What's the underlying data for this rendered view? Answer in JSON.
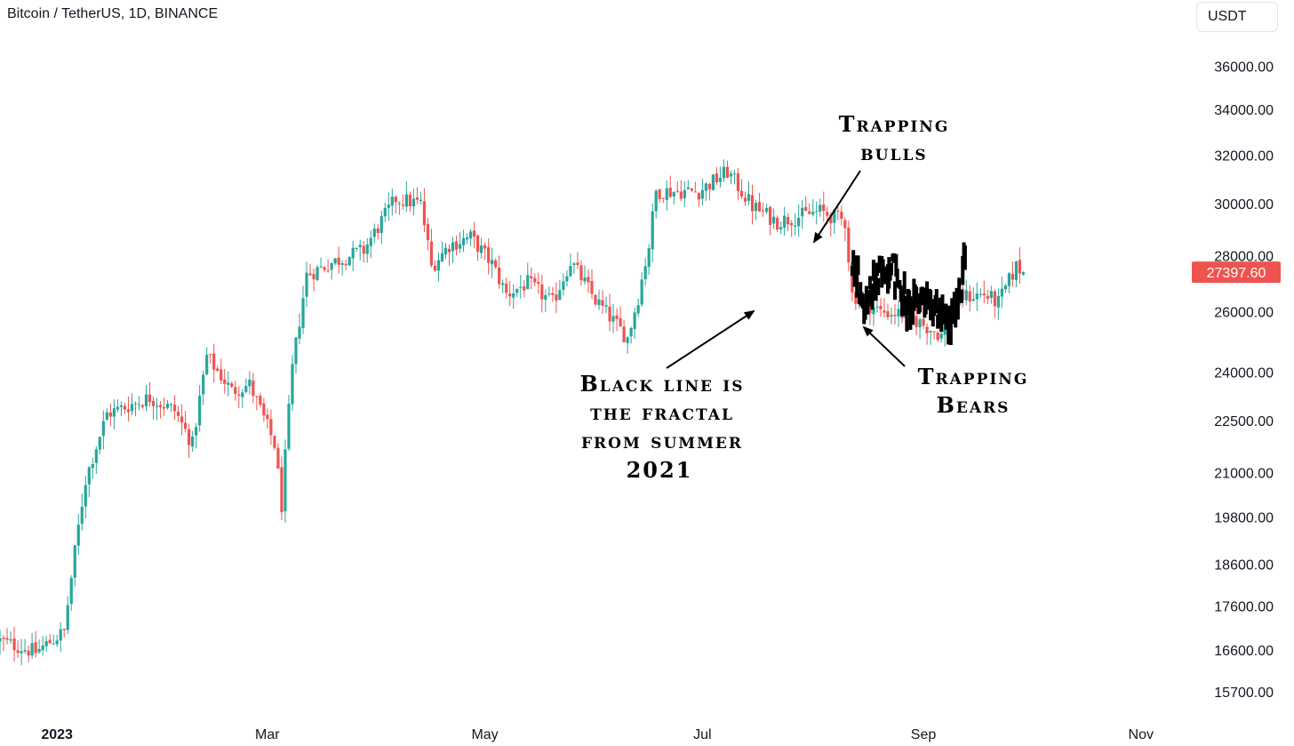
{
  "header": {
    "title": "Bitcoin / TetherUS, 1D, BINANCE",
    "currency_button": "USDT"
  },
  "colors": {
    "up": "#26a69a",
    "down": "#ef5350",
    "fractal": "#000000",
    "price_tag": "#ef5350"
  },
  "chart_data": {
    "type": "candlestick",
    "symbol": "Bitcoin / TetherUS",
    "interval": "1D",
    "exchange": "BINANCE",
    "y_scale": "log",
    "ylim": [
      15300,
      37500
    ],
    "y_ticks": [
      {
        "value": 36000,
        "label": "36000.00"
      },
      {
        "value": 34000,
        "label": "34000.00"
      },
      {
        "value": 32000,
        "label": "32000.00"
      },
      {
        "value": 30000,
        "label": "30000.00"
      },
      {
        "value": 28000,
        "label": "28000.00"
      },
      {
        "value": 26000,
        "label": "26000.00"
      },
      {
        "value": 24000,
        "label": "24000.00"
      },
      {
        "value": 22500,
        "label": "22500.00"
      },
      {
        "value": 21000,
        "label": "21000.00"
      },
      {
        "value": 19800,
        "label": "19800.00"
      },
      {
        "value": 18600,
        "label": "18600.00"
      },
      {
        "value": 17600,
        "label": "17600.00"
      },
      {
        "value": 16600,
        "label": "16600.00"
      },
      {
        "value": 15700,
        "label": "15700.00"
      }
    ],
    "x_range": [
      "2022-12-21",
      "2023-11-20"
    ],
    "x_ticks": [
      {
        "date": "2023-01-01",
        "label": "2023",
        "bold": true
      },
      {
        "date": "2023-03-01",
        "label": "Mar"
      },
      {
        "date": "2023-05-01",
        "label": "May"
      },
      {
        "date": "2023-07-01",
        "label": "Jul"
      },
      {
        "date": "2023-09-01",
        "label": "Sep"
      },
      {
        "date": "2023-11-01",
        "label": "Nov"
      }
    ],
    "last_price": {
      "value": 27397.6,
      "label": "27397.60"
    },
    "anchors": [
      [
        "2022-12-21",
        16800
      ],
      [
        "2022-12-31",
        16550
      ],
      [
        "2023-01-08",
        17000
      ],
      [
        "2023-01-14",
        20800
      ],
      [
        "2023-01-20",
        22700
      ],
      [
        "2023-02-01",
        23200
      ],
      [
        "2023-02-08",
        22800
      ],
      [
        "2023-02-13",
        21800
      ],
      [
        "2023-02-17",
        24500
      ],
      [
        "2023-02-24",
        23400
      ],
      [
        "2023-03-01",
        23600
      ],
      [
        "2023-03-08",
        21800
      ],
      [
        "2023-03-10",
        20100
      ],
      [
        "2023-03-13",
        24100
      ],
      [
        "2023-03-17",
        27300
      ],
      [
        "2023-03-25",
        27800
      ],
      [
        "2023-04-02",
        28200
      ],
      [
        "2023-04-11",
        30200
      ],
      [
        "2023-04-18",
        30000
      ],
      [
        "2023-04-21",
        27600
      ],
      [
        "2023-04-26",
        28400
      ],
      [
        "2023-05-02",
        28700
      ],
      [
        "2023-05-08",
        27700
      ],
      [
        "2023-05-12",
        26600
      ],
      [
        "2023-05-18",
        27000
      ],
      [
        "2023-05-25",
        26300
      ],
      [
        "2023-05-30",
        27800
      ],
      [
        "2023-06-06",
        26400
      ],
      [
        "2023-06-15",
        25100
      ],
      [
        "2023-06-18",
        26500
      ],
      [
        "2023-06-21",
        28400
      ],
      [
        "2023-06-23",
        30500
      ],
      [
        "2023-07-05",
        30500
      ],
      [
        "2023-07-13",
        31300
      ],
      [
        "2023-07-20",
        29900
      ],
      [
        "2023-07-27",
        29300
      ],
      [
        "2023-08-08",
        29700
      ],
      [
        "2023-08-15",
        29300
      ],
      [
        "2023-08-17",
        26600
      ],
      [
        "2023-08-25",
        26000
      ],
      [
        "2023-09-01",
        25900
      ],
      [
        "2023-09-11",
        25200
      ],
      [
        "2023-09-16",
        26500
      ],
      [
        "2023-09-23",
        26600
      ],
      [
        "2023-09-27",
        26300
      ],
      [
        "2023-10-02",
        27600
      ],
      [
        "2023-10-04",
        27400
      ]
    ],
    "fractal_anchors": [
      [
        "2023-08-17",
        27900
      ],
      [
        "2023-08-20",
        26200
      ],
      [
        "2023-08-24",
        27200
      ],
      [
        "2023-08-28",
        27700
      ],
      [
        "2023-09-01",
        26100
      ],
      [
        "2023-09-06",
        26600
      ],
      [
        "2023-09-10",
        25900
      ],
      [
        "2023-09-13",
        25500
      ],
      [
        "2023-09-16",
        26800
      ],
      [
        "2023-09-17",
        27700
      ]
    ]
  },
  "annotations": [
    {
      "id": "trapping-bulls",
      "lines": [
        "Trapping",
        "bulls"
      ]
    },
    {
      "id": "trapping-bears",
      "lines": [
        "Trapping",
        "Bears"
      ]
    },
    {
      "id": "fractal-note",
      "lines": [
        "Black line is",
        "the fractal",
        "from summer",
        "2021"
      ]
    }
  ]
}
